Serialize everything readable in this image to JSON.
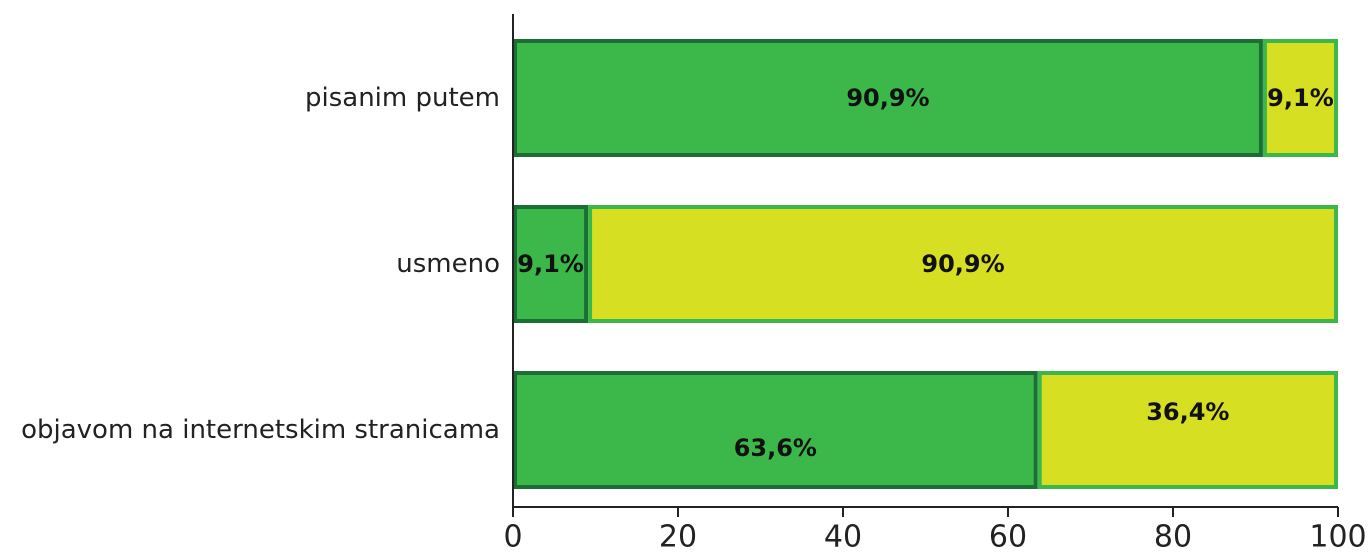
{
  "chart_data": {
    "type": "bar",
    "orientation": "horizontal",
    "stacked": true,
    "categories": [
      "pisanim putem",
      "usmeno",
      "objavom na internetskim stranicama"
    ],
    "series": [
      {
        "values": [
          90.9,
          9.1,
          63.6
        ],
        "labels": [
          "90,9%",
          "9,1%",
          "63,6%"
        ],
        "color": "#3cb84a",
        "border_color": "#1b6e34"
      },
      {
        "values": [
          9.1,
          90.9,
          36.4
        ],
        "labels": [
          "9,1%",
          "90,9%",
          "36,4%"
        ],
        "color": "#d6df22",
        "border_color": "#3cb84a"
      }
    ],
    "xlim": [
      0,
      100
    ],
    "x_ticks": [
      0,
      20,
      40,
      60,
      80,
      100
    ],
    "tick_labels": [
      "0",
      "20",
      "40",
      "60",
      "80",
      "100"
    ],
    "title": "",
    "xlabel": "",
    "ylabel": "",
    "grid": false,
    "legend": "none"
  }
}
